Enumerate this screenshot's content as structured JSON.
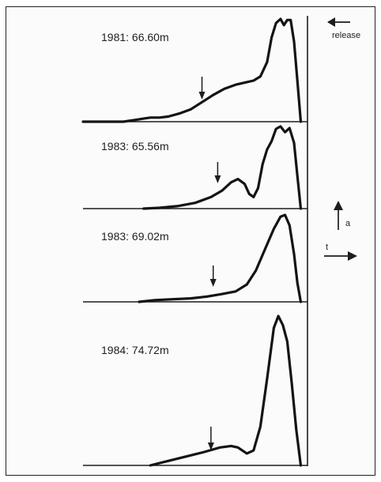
{
  "chart_data": {
    "type": "line",
    "title": "",
    "xlabel": "t",
    "ylabel": "a",
    "release_label": "release",
    "panels": [
      {
        "label": "1981: 66.60m",
        "marker_x": 0.53,
        "points": [
          [
            0.0,
            0.0
          ],
          [
            0.18,
            0.0
          ],
          [
            0.24,
            0.02
          ],
          [
            0.27,
            0.03
          ],
          [
            0.3,
            0.04
          ],
          [
            0.34,
            0.04
          ],
          [
            0.38,
            0.05
          ],
          [
            0.43,
            0.08
          ],
          [
            0.48,
            0.12
          ],
          [
            0.53,
            0.19
          ],
          [
            0.58,
            0.26
          ],
          [
            0.63,
            0.32
          ],
          [
            0.68,
            0.36
          ],
          [
            0.72,
            0.38
          ],
          [
            0.76,
            0.4
          ],
          [
            0.79,
            0.44
          ],
          [
            0.82,
            0.58
          ],
          [
            0.84,
            0.82
          ],
          [
            0.86,
            0.96
          ],
          [
            0.88,
            1.0
          ],
          [
            0.895,
            0.94
          ],
          [
            0.91,
            0.99
          ],
          [
            0.925,
            0.99
          ],
          [
            0.94,
            0.78
          ],
          [
            0.955,
            0.4
          ],
          [
            0.97,
            0.0
          ]
        ]
      },
      {
        "label": "1983: 65.56m",
        "marker_x": 0.6,
        "points": [
          [
            0.27,
            0.0
          ],
          [
            0.34,
            0.01
          ],
          [
            0.42,
            0.03
          ],
          [
            0.5,
            0.07
          ],
          [
            0.57,
            0.14
          ],
          [
            0.62,
            0.22
          ],
          [
            0.66,
            0.32
          ],
          [
            0.69,
            0.36
          ],
          [
            0.72,
            0.3
          ],
          [
            0.74,
            0.18
          ],
          [
            0.76,
            0.14
          ],
          [
            0.78,
            0.25
          ],
          [
            0.8,
            0.54
          ],
          [
            0.82,
            0.72
          ],
          [
            0.84,
            0.82
          ],
          [
            0.86,
            0.97
          ],
          [
            0.88,
            1.0
          ],
          [
            0.9,
            0.93
          ],
          [
            0.92,
            0.98
          ],
          [
            0.94,
            0.8
          ],
          [
            0.955,
            0.4
          ],
          [
            0.97,
            0.0
          ]
        ]
      },
      {
        "label": "1983: 69.02m",
        "marker_x": 0.58,
        "points": [
          [
            0.25,
            0.0
          ],
          [
            0.32,
            0.02
          ],
          [
            0.4,
            0.03
          ],
          [
            0.48,
            0.04
          ],
          [
            0.55,
            0.06
          ],
          [
            0.62,
            0.09
          ],
          [
            0.68,
            0.12
          ],
          [
            0.73,
            0.2
          ],
          [
            0.77,
            0.36
          ],
          [
            0.81,
            0.6
          ],
          [
            0.85,
            0.84
          ],
          [
            0.88,
            0.98
          ],
          [
            0.9,
            1.0
          ],
          [
            0.92,
            0.88
          ],
          [
            0.94,
            0.55
          ],
          [
            0.955,
            0.22
          ],
          [
            0.97,
            0.0
          ]
        ]
      },
      {
        "label": "1984: 74.72m",
        "marker_x": 0.57,
        "points": [
          [
            0.3,
            0.0
          ],
          [
            0.38,
            0.03
          ],
          [
            0.46,
            0.06
          ],
          [
            0.54,
            0.09
          ],
          [
            0.61,
            0.12
          ],
          [
            0.66,
            0.13
          ],
          [
            0.69,
            0.12
          ],
          [
            0.73,
            0.08
          ],
          [
            0.76,
            0.1
          ],
          [
            0.79,
            0.26
          ],
          [
            0.82,
            0.58
          ],
          [
            0.85,
            0.92
          ],
          [
            0.87,
            1.0
          ],
          [
            0.89,
            0.94
          ],
          [
            0.91,
            0.83
          ],
          [
            0.93,
            0.55
          ],
          [
            0.95,
            0.24
          ],
          [
            0.97,
            0.0
          ]
        ]
      }
    ],
    "xlim": [
      0,
      1
    ],
    "ylim": [
      0,
      1
    ],
    "grid": false,
    "legend": "none"
  }
}
